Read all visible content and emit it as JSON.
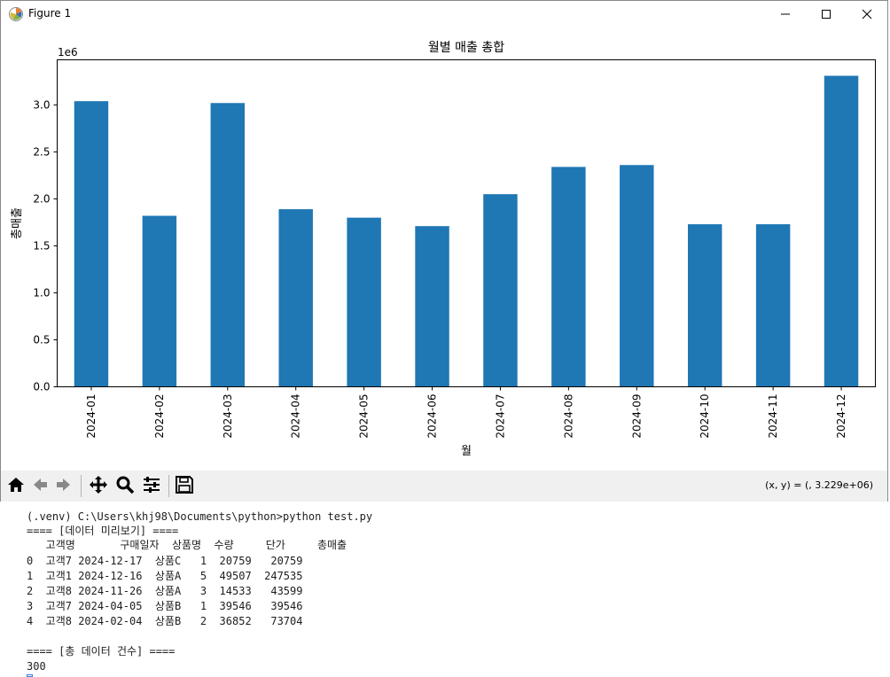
{
  "window": {
    "title": "Figure 1",
    "minimize_icon": "minimize-icon",
    "maximize_icon": "maximize-icon",
    "close_icon": "close-icon"
  },
  "toolbar": {
    "buttons": [
      "home-icon",
      "back-icon",
      "forward-icon",
      "pan-icon",
      "zoom-icon",
      "configure-subplots-icon",
      "save-icon"
    ],
    "coordinates": "(x, y) = (, 3.229e+06)"
  },
  "chart_data": {
    "type": "bar",
    "title": "월별 매출 총합",
    "xlabel": "월",
    "ylabel": "총매출",
    "y_offset_label": "1e6",
    "categories": [
      "2024-01",
      "2024-02",
      "2024-03",
      "2024-04",
      "2024-05",
      "2024-06",
      "2024-07",
      "2024-08",
      "2024-09",
      "2024-10",
      "2024-11",
      "2024-12"
    ],
    "values": [
      3040000,
      1820000,
      3020000,
      1890000,
      1800000,
      1710000,
      2050000,
      2340000,
      2360000,
      1730000,
      1730000,
      3310000
    ],
    "ylim": [
      0,
      3480000
    ],
    "yticks": [
      0,
      500000,
      1000000,
      1500000,
      2000000,
      2500000,
      3000000
    ],
    "ytick_labels": [
      "0.0",
      "0.5",
      "1.0",
      "1.5",
      "2.0",
      "2.5",
      "3.0"
    ],
    "bar_color": "#1f77b4",
    "grid": false,
    "legend": "none"
  },
  "terminal": {
    "lines": [
      "(.venv) C:\\Users\\khj98\\Documents\\python>python test.py",
      "==== [데이터 미리보기] ====",
      "   고객명       구매일자  상품명  수량     단가     총매출",
      "0  고객7 2024-12-17  상품C   1  20759   20759",
      "1  고객1 2024-12-16  상품A   5  49507  247535",
      "2  고객8 2024-11-26  상품A   3  14533   43599",
      "3  고객7 2024-04-05  상품B   1  39546   39546",
      "4  고객8 2024-02-04  상품B   2  36852   73704",
      "",
      "==== [총 데이터 건수] ====",
      "300"
    ]
  }
}
